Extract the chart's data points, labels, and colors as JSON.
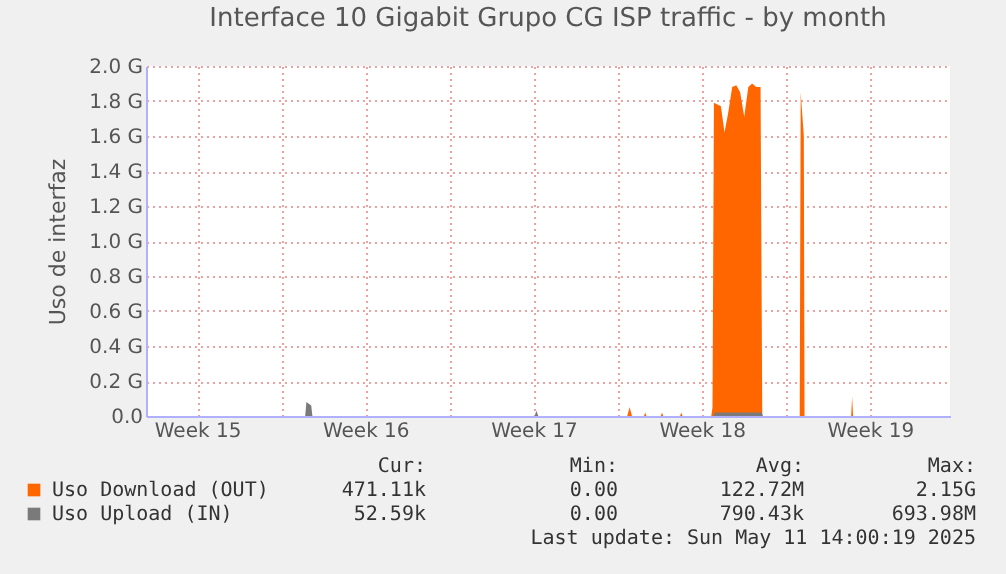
{
  "chart_data": {
    "type": "area",
    "title": "Interface 10 Gigabit Grupo CG ISP traffic - by month",
    "ylabel": "Uso de interfaz",
    "xlim": [
      "2025-04-08T09:00",
      "2025-05-11T20:00"
    ],
    "xticks": [
      {
        "value": "2025-04-10T12:00",
        "label": "Week 15"
      },
      {
        "value": "2025-04-14",
        "label": null
      },
      {
        "value": "2025-04-17T12:00",
        "label": "Week 16"
      },
      {
        "value": "2025-04-21",
        "label": null
      },
      {
        "value": "2025-04-24T12:00",
        "label": "Week 17"
      },
      {
        "value": "2025-04-28",
        "label": null
      },
      {
        "value": "2025-05-01T12:00",
        "label": "Week 18"
      },
      {
        "value": "2025-05-05",
        "label": null
      },
      {
        "value": "2025-05-08T12:00",
        "label": "Week 19"
      }
    ],
    "ylim": [
      0,
      2.0
    ],
    "yticks": [
      {
        "value": 0,
        "label": "0.0"
      },
      {
        "value": 0.2,
        "label": "0.2 G"
      },
      {
        "value": 0.4,
        "label": "0.4 G"
      },
      {
        "value": 0.6,
        "label": "0.6 G"
      },
      {
        "value": 0.8,
        "label": "0.8 G"
      },
      {
        "value": 1.0,
        "label": "1.0 G"
      },
      {
        "value": 1.2,
        "label": "1.2 G"
      },
      {
        "value": 1.4,
        "label": "1.4 G"
      },
      {
        "value": 1.6,
        "label": "1.6 G"
      },
      {
        "value": 1.8,
        "label": "1.8 G"
      },
      {
        "value": 2.0,
        "label": "2.0 G"
      }
    ],
    "grid": true,
    "legend": "bottom",
    "series": [
      {
        "name": "Uso Download (OUT)",
        "color": "#ff6600",
        "x": [
          "2025-04-08T09:00",
          "2025-04-28T09:36",
          "2025-04-28T12:00",
          "2025-04-28T14:24",
          "2025-04-29T02:24",
          "2025-04-29T03:36",
          "2025-04-29T04:48",
          "2025-04-29T19:12",
          "2025-04-29T20:24",
          "2025-04-29T21:36",
          "2025-04-30T14:24",
          "2025-04-30T15:36",
          "2025-04-30T16:48",
          "2025-05-01T21:36",
          "2025-05-01T22:48",
          "2025-05-02T00:14",
          "2025-05-02T07:12",
          "2025-05-02T10:48",
          "2025-05-02T14:24",
          "2025-05-02T18:29",
          "2025-05-02T22:34",
          "2025-05-03T02:24",
          "2025-05-03T06:29",
          "2025-05-03T10:34",
          "2025-05-03T14:24",
          "2025-05-03T18:29",
          "2025-05-03T22:48",
          "2025-05-04T00:29",
          "2025-05-05T13:55",
          "2025-05-05T14:53",
          "2025-05-05T18:00",
          "2025-05-05T18:43",
          "2025-05-07T17:17",
          "2025-05-07T18:14",
          "2025-05-07T19:12",
          "2025-05-11T20:00"
        ],
        "values": [
          0,
          0,
          0.05,
          0,
          0,
          0.02,
          0,
          0,
          0.02,
          0,
          0,
          0.02,
          0,
          0,
          0.05,
          1.79,
          1.77,
          1.62,
          1.73,
          1.88,
          1.89,
          1.85,
          1.71,
          1.88,
          1.9,
          1.88,
          1.88,
          0,
          0,
          1.85,
          1.6,
          0,
          0,
          0.11,
          0,
          0
        ]
      },
      {
        "name": "Uso Upload (IN)",
        "color": "#7a7a7a",
        "x": [
          "2025-04-08T09:00",
          "2025-04-15T00:00",
          "2025-04-15T01:12",
          "2025-04-15T06:00",
          "2025-04-15T07:12",
          "2025-04-24T13:12",
          "2025-04-24T14:53",
          "2025-04-24T16:48",
          "2025-05-02T00:00",
          "2025-05-02T01:12",
          "2025-05-04T00:00",
          "2025-05-04T01:12",
          "2025-05-11T20:00"
        ],
        "values": [
          0,
          0,
          0.08,
          0.06,
          0,
          0,
          0.03,
          0,
          0,
          0.02,
          0.02,
          0,
          0
        ]
      }
    ],
    "annotations": [
      "Cur:",
      "Min:",
      "Avg:",
      "Max:",
      "471.11k",
      "0.00",
      "122.72M",
      "2.15G",
      "52.59k",
      "0.00",
      "790.43k",
      "693.98M",
      "Last update: Sun May 11 14:00:19 2025"
    ]
  }
}
